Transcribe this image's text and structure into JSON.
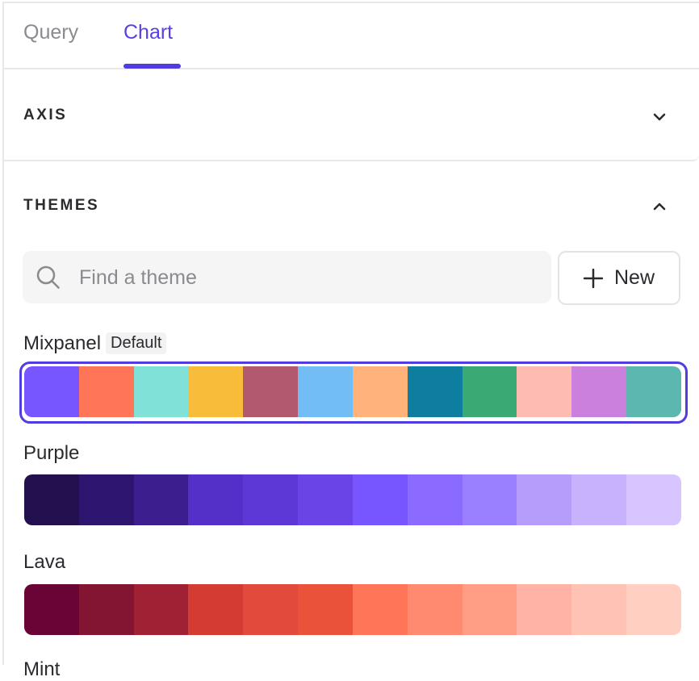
{
  "tabs": [
    {
      "label": "Query",
      "active": false
    },
    {
      "label": "Chart",
      "active": true
    }
  ],
  "accent_color": "#4f3de0",
  "sections": {
    "axis": {
      "title": "AXIS",
      "expanded": false,
      "icon": "chevron-down-icon"
    },
    "themes": {
      "title": "THEMES",
      "expanded": true,
      "icon": "chevron-up-icon"
    }
  },
  "search": {
    "placeholder": "Find a theme",
    "value": "",
    "icon": "search-icon"
  },
  "new_button": {
    "label": "New",
    "icon": "plus-icon"
  },
  "themes": [
    {
      "name": "Mixpanel",
      "badge": "Default",
      "selected": true,
      "colors": [
        "#7856FF",
        "#FF7557",
        "#80E1D9",
        "#F8BC3B",
        "#B2596E",
        "#72BEF4",
        "#FFB27A",
        "#0D7EA0",
        "#3BA974",
        "#FEBBB2",
        "#CA80DC",
        "#5BB7AF"
      ]
    },
    {
      "name": "Purple",
      "selected": false,
      "colors": [
        "#23104F",
        "#2E1570",
        "#3C1E8E",
        "#5530C8",
        "#5E38D6",
        "#6A44E6",
        "#7856FF",
        "#8B6BFF",
        "#9A7FFF",
        "#B69CFB",
        "#C7B3FD",
        "#D6C5FE"
      ]
    },
    {
      "name": "Lava",
      "selected": false,
      "colors": [
        "#6A0437",
        "#831533",
        "#A02133",
        "#D43C33",
        "#E24B3B",
        "#EA5239",
        "#FF7557",
        "#FF8A70",
        "#FF9D85",
        "#FFB3A6",
        "#FFC2B5",
        "#FFCFC2"
      ]
    },
    {
      "name": "Mint",
      "selected": false
    }
  ]
}
